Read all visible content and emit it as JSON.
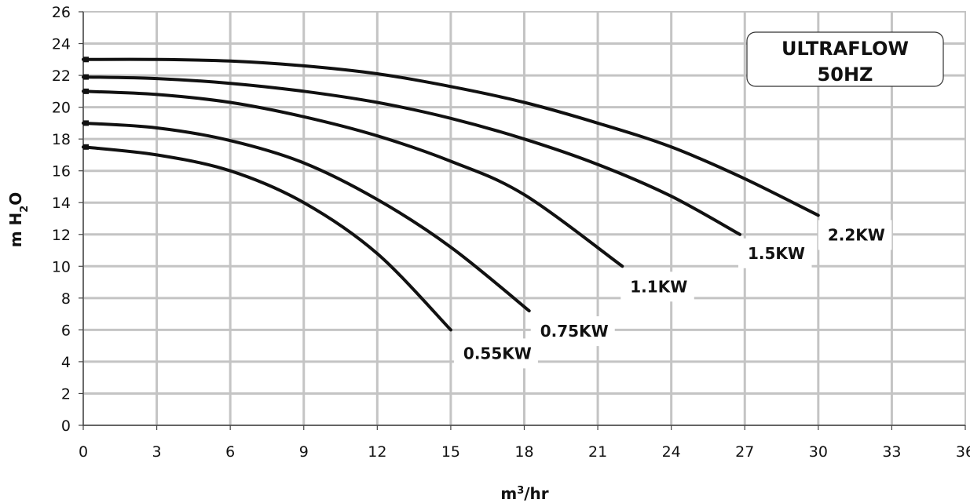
{
  "chart_data": {
    "type": "line",
    "title": "ULTRAFLOW",
    "subtitle": "50HZ",
    "xlabel": {
      "base": "m",
      "sup": "3",
      "rest": "/hr"
    },
    "ylabel": {
      "base": "m H",
      "sub": "2",
      "rest": "O"
    },
    "xlim": [
      0,
      36
    ],
    "ylim": [
      0,
      26
    ],
    "x_ticks": [
      "0",
      "3",
      "6",
      "9",
      "12",
      "15",
      "18",
      "21",
      "24",
      "27",
      "30",
      "33",
      "36"
    ],
    "y_ticks": [
      "0",
      "2",
      "4",
      "6",
      "8",
      "10",
      "12",
      "14",
      "16",
      "18",
      "20",
      "22",
      "24",
      "26"
    ],
    "grid": true,
    "legend": "inline labels",
    "series": [
      {
        "name": "0.55KW",
        "x": [
          0,
          3,
          6,
          9,
          12,
          15
        ],
        "y": [
          17.5,
          17.0,
          16.0,
          14.0,
          10.8,
          6.0
        ]
      },
      {
        "name": "0.75KW",
        "x": [
          0,
          3,
          6,
          9,
          12,
          15,
          18.2
        ],
        "y": [
          19.0,
          18.7,
          17.9,
          16.5,
          14.2,
          11.2,
          7.2
        ]
      },
      {
        "name": "1.1KW",
        "x": [
          0,
          3,
          6,
          9,
          12,
          15,
          18,
          22
        ],
        "y": [
          21.0,
          20.8,
          20.3,
          19.4,
          18.2,
          16.6,
          14.5,
          10.0
        ]
      },
      {
        "name": "1.5KW",
        "x": [
          0,
          3,
          6,
          9,
          12,
          15,
          18,
          21,
          24,
          26.8
        ],
        "y": [
          21.9,
          21.8,
          21.5,
          21.0,
          20.3,
          19.3,
          18.0,
          16.4,
          14.4,
          12.0
        ]
      },
      {
        "name": "2.2KW",
        "x": [
          0,
          3,
          6,
          9,
          12,
          15,
          18,
          21,
          24,
          27,
          30
        ],
        "y": [
          23.0,
          23.0,
          22.9,
          22.6,
          22.1,
          21.3,
          20.3,
          19.0,
          17.5,
          15.5,
          13.2
        ]
      }
    ]
  }
}
